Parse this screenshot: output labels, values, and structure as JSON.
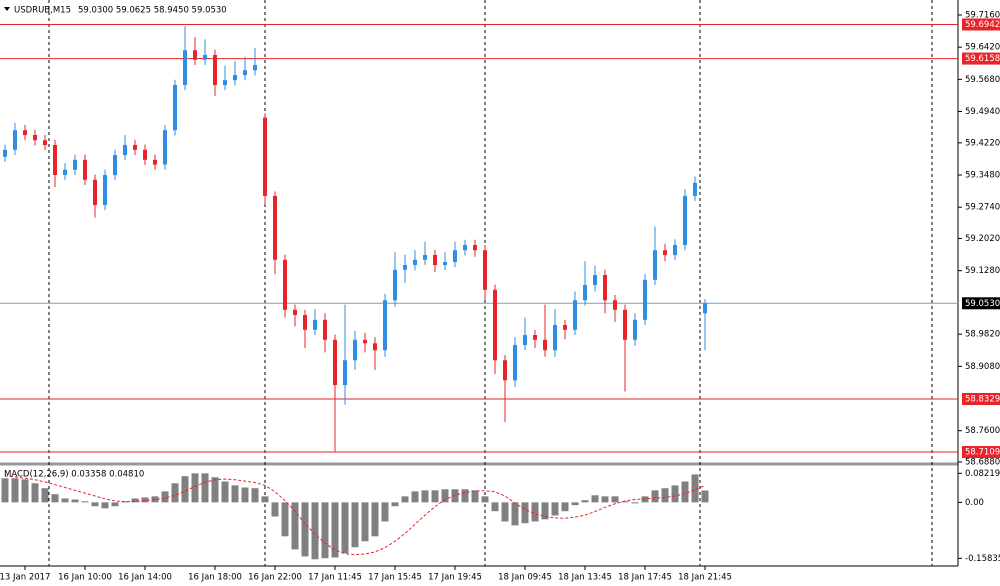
{
  "chart_data": [
    {
      "type": "candlestick",
      "title": "USDRUB,M15",
      "subtitle": "59.0300 59.0625 58.9450 59.0530",
      "x": [
        null,
        null,
        "13 Jan 2017",
        null,
        null,
        null,
        null,
        null,
        "16 Jan 10:00",
        null,
        null,
        null,
        null,
        null,
        "16 Jan 14:00",
        null,
        null,
        null,
        null,
        null,
        null,
        "16 Jan 18:00",
        null,
        null,
        null,
        null,
        null,
        "16 Jan 22:00",
        null,
        null,
        null,
        null,
        null,
        "17 Jan 11:45",
        null,
        null,
        null,
        null,
        null,
        "17 Jan 15:45",
        null,
        null,
        null,
        null,
        null,
        "17 Jan 19:45",
        null,
        null,
        null,
        null,
        null,
        null,
        "18 Jan 09:45",
        null,
        null,
        null,
        null,
        null,
        "18 Jan 13:45",
        null,
        null,
        null,
        null,
        null,
        "18 Jan 17:45",
        null,
        null,
        null,
        null,
        null,
        "18 Jan 21:45"
      ],
      "open": [
        59.39,
        59.406,
        59.451,
        59.44,
        59.428,
        59.417,
        59.348,
        59.36,
        59.383,
        59.337,
        59.279,
        59.348,
        59.394,
        59.417,
        59.406,
        59.383,
        59.372,
        59.451,
        59.555,
        59.635,
        59.613,
        59.624,
        59.555,
        59.566,
        59.578,
        59.589,
        59.48,
        59.3,
        59.153,
        59.038,
        59.026,
        58.992,
        59.015,
        58.969,
        58.865,
        58.922,
        58.969,
        58.961,
        58.945,
        59.06,
        59.13,
        59.141,
        59.153,
        59.164,
        59.141,
        59.148,
        59.175,
        59.187,
        59.175,
        59.084,
        58.922,
        58.876,
        58.957,
        58.98,
        58.969,
        58.945,
        59.003,
        58.992,
        59.06,
        59.095,
        59.118,
        59.06,
        59.038,
        58.969,
        59.015,
        59.107,
        59.175,
        59.164,
        59.187,
        59.3,
        59.03
      ],
      "high": [
        59.418,
        59.468,
        59.463,
        59.452,
        59.44,
        59.429,
        59.375,
        59.395,
        59.395,
        59.349,
        59.36,
        59.406,
        59.44,
        59.429,
        59.418,
        59.395,
        59.463,
        59.567,
        59.69,
        59.665,
        59.66,
        59.636,
        59.6,
        59.61,
        59.62,
        59.64,
        59.49,
        59.31,
        59.165,
        59.05,
        59.038,
        59.04,
        59.03,
        58.981,
        59.05,
        58.99,
        58.985,
        58.975,
        59.075,
        59.17,
        59.165,
        59.175,
        59.195,
        59.176,
        59.17,
        59.195,
        59.199,
        59.199,
        59.187,
        59.096,
        58.934,
        58.975,
        59.02,
        58.992,
        59.05,
        59.04,
        59.015,
        59.08,
        59.15,
        59.14,
        59.13,
        59.072,
        59.05,
        59.03,
        59.12,
        59.23,
        59.19,
        59.2,
        59.315,
        59.345,
        59.0625
      ],
      "low": [
        59.378,
        59.394,
        59.428,
        59.416,
        59.405,
        59.32,
        59.336,
        59.348,
        59.325,
        59.25,
        59.267,
        59.336,
        59.382,
        59.394,
        59.371,
        59.36,
        59.36,
        59.439,
        59.543,
        59.601,
        59.601,
        59.53,
        59.543,
        59.554,
        59.566,
        59.577,
        59.28,
        59.12,
        59.02,
        59.0,
        58.95,
        58.98,
        58.94,
        58.711,
        58.82,
        58.9,
        58.94,
        58.9,
        58.93,
        59.045,
        59.1,
        59.129,
        59.141,
        59.125,
        59.129,
        59.136,
        59.163,
        59.16,
        59.06,
        58.89,
        58.78,
        58.86,
        58.945,
        58.95,
        58.93,
        58.93,
        58.97,
        58.98,
        59.048,
        59.08,
        59.03,
        59.01,
        58.85,
        58.955,
        59.003,
        59.095,
        59.15,
        59.152,
        59.175,
        59.288,
        58.945
      ],
      "close": [
        59.406,
        59.451,
        59.44,
        59.428,
        59.417,
        59.348,
        59.36,
        59.383,
        59.337,
        59.279,
        59.348,
        59.394,
        59.417,
        59.406,
        59.383,
        59.372,
        59.451,
        59.555,
        59.635,
        59.613,
        59.624,
        59.555,
        59.566,
        59.578,
        59.589,
        59.601,
        59.3,
        59.153,
        59.038,
        59.026,
        58.992,
        59.015,
        58.969,
        58.865,
        58.922,
        58.969,
        58.961,
        58.945,
        59.06,
        59.13,
        59.141,
        59.153,
        59.164,
        59.141,
        59.148,
        59.175,
        59.187,
        59.175,
        59.084,
        58.922,
        58.876,
        58.957,
        58.98,
        58.969,
        58.945,
        59.003,
        58.992,
        59.06,
        59.095,
        59.118,
        59.06,
        59.038,
        58.969,
        59.015,
        59.107,
        59.175,
        59.164,
        59.187,
        59.3,
        59.33,
        59.053
      ],
      "up_color": "#2f8de4",
      "down_color": "#e8232a",
      "ylim": [
        58.688,
        59.716
      ],
      "yticks": [
        {
          "value": 59.716,
          "label": "59.7160"
        },
        {
          "value": 59.642,
          "label": "59.6420"
        },
        {
          "value": 59.568,
          "label": "59.5680"
        },
        {
          "value": 59.494,
          "label": "59.4940"
        },
        {
          "value": 59.422,
          "label": "59.4220"
        },
        {
          "value": 59.348,
          "label": "59.3480"
        },
        {
          "value": 59.274,
          "label": "59.2740"
        },
        {
          "value": 59.202,
          "label": "59.2020"
        },
        {
          "value": 59.128,
          "label": "59.1280"
        },
        {
          "value": 58.982,
          "label": "58.9820"
        },
        {
          "value": 58.908,
          "label": "58.9080"
        },
        {
          "value": 58.76,
          "label": "58.7600"
        },
        {
          "value": 58.688,
          "label": "58.6880"
        }
      ],
      "levels": [
        59.6942,
        59.6158,
        58.8329,
        58.7109
      ],
      "level_color": "#e8232a",
      "current": {
        "value": 59.053,
        "label": "59.0530"
      },
      "current_color": "#7f9fc0"
    },
    {
      "type": "bar",
      "title": "MACD(12,26,9) 0.03358 0.04810",
      "values": [
        0.068,
        0.068,
        0.065,
        0.054,
        0.04,
        0.023,
        0.011,
        0.008,
        0.003,
        -0.011,
        -0.017,
        -0.011,
        0.003,
        0.011,
        0.014,
        0.017,
        0.031,
        0.054,
        0.074,
        0.082,
        0.082,
        0.071,
        0.059,
        0.048,
        0.042,
        0.04,
        0.017,
        -0.04,
        -0.096,
        -0.133,
        -0.153,
        -0.161,
        -0.158,
        -0.156,
        -0.144,
        -0.127,
        -0.11,
        -0.096,
        -0.054,
        -0.011,
        0.017,
        0.031,
        0.034,
        0.034,
        0.037,
        0.037,
        0.037,
        0.034,
        0.017,
        -0.025,
        -0.054,
        -0.065,
        -0.059,
        -0.054,
        -0.048,
        -0.037,
        -0.025,
        -0.008,
        0.006,
        0.02,
        0.017,
        0.017,
        0.003,
        -0.003,
        0.017,
        0.034,
        0.04,
        0.048,
        0.059,
        0.079,
        0.03358
      ],
      "color": "#808080",
      "signal": [
        0.075,
        0.072,
        0.068,
        0.064,
        0.058,
        0.05,
        0.042,
        0.034,
        0.026,
        0.018,
        0.01,
        0.004,
        0.002,
        0.003,
        0.005,
        0.008,
        0.012,
        0.02,
        0.032,
        0.045,
        0.057,
        0.064,
        0.066,
        0.064,
        0.06,
        0.056,
        0.048,
        0.03,
        0.005,
        -0.025,
        -0.06,
        -0.09,
        -0.115,
        -0.135,
        -0.145,
        -0.148,
        -0.146,
        -0.14,
        -0.128,
        -0.11,
        -0.088,
        -0.062,
        -0.036,
        -0.012,
        0.008,
        0.02,
        0.028,
        0.032,
        0.033,
        0.03,
        0.018,
        -0.002,
        -0.02,
        -0.032,
        -0.04,
        -0.044,
        -0.045,
        -0.042,
        -0.036,
        -0.026,
        -0.014,
        -0.004,
        0.004,
        0.008,
        0.01,
        0.012,
        0.014,
        0.018,
        0.025,
        0.035,
        0.0481
      ],
      "signal_color": "#e8232a",
      "ylim": [
        -0.18,
        0.1
      ],
      "yticks": [
        0.08219,
        {
          "value": 0,
          "label": "0.00"
        },
        -0.15835
      ]
    }
  ]
}
